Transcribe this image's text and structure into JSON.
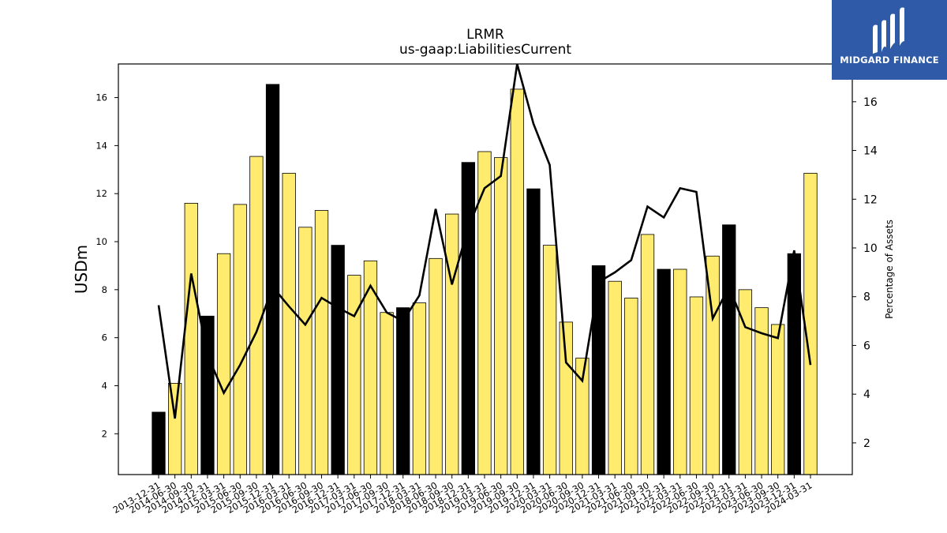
{
  "logo": {
    "text": "MIDGARD FINANCE"
  },
  "chart_data": {
    "type": "bar",
    "title": "LRMR",
    "subtitle": "us-gaap:LiabilitiesCurrent",
    "ylabel": "USDm",
    "ylabel_right": "Percentage of Assets",
    "ylim": [
      0.3,
      17.4
    ],
    "ylim_right": [
      0.7,
      17.55
    ],
    "yticks": [
      2,
      4,
      6,
      8,
      10,
      12,
      14,
      16
    ],
    "yticks_right": [
      2,
      4,
      6,
      8,
      10,
      12,
      14,
      16
    ],
    "grid": false,
    "colors": {
      "annual": "#000000",
      "quarter": "#ffec6e",
      "line": "#000000"
    },
    "categories": [
      "2013-12-31",
      "2014-06-30",
      "2014-09-30",
      "2014-12-31",
      "2015-03-31",
      "2015-06-30",
      "2015-09-30",
      "2015-12-31",
      "2016-03-31",
      "2016-06-30",
      "2016-09-30",
      "2016-12-31",
      "2017-03-31",
      "2017-06-30",
      "2017-09-30",
      "2017-12-31",
      "2018-03-31",
      "2018-06-30",
      "2018-09-30",
      "2018-12-31",
      "2019-03-31",
      "2019-06-30",
      "2019-09-30",
      "2019-12-31",
      "2020-03-31",
      "2020-06-30",
      "2020-09-30",
      "2020-12-31",
      "2021-03-31",
      "2021-06-30",
      "2021-09-30",
      "2021-12-31",
      "2022-03-31",
      "2022-06-30",
      "2022-09-30",
      "2022-12-31",
      "2023-03-31",
      "2023-06-30",
      "2023-09-30",
      "2023-12-31",
      "2024-03-31"
    ],
    "values": [
      2.9,
      4.1,
      11.6,
      6.9,
      9.5,
      11.55,
      13.55,
      16.55,
      12.85,
      10.6,
      11.3,
      9.85,
      8.6,
      9.2,
      7.05,
      7.25,
      7.45,
      9.3,
      11.15,
      13.3,
      13.75,
      13.5,
      16.35,
      12.2,
      9.85,
      6.65,
      5.15,
      9.0,
      8.35,
      7.65,
      10.3,
      8.85,
      8.85,
      7.7,
      9.4,
      10.7,
      8.0,
      7.25,
      6.55,
      9.5,
      12.85
    ],
    "annual_flags": [
      true,
      false,
      false,
      true,
      false,
      false,
      false,
      true,
      false,
      false,
      false,
      true,
      false,
      false,
      false,
      true,
      false,
      false,
      false,
      true,
      false,
      false,
      false,
      true,
      false,
      false,
      false,
      true,
      false,
      false,
      false,
      true,
      false,
      false,
      false,
      true,
      false,
      false,
      false,
      true,
      false
    ],
    "series": [
      {
        "type": "line",
        "axis": "right",
        "values": [
          7.65,
          3.0,
          8.95,
          5.6,
          4.05,
          5.2,
          6.55,
          8.4,
          7.6,
          6.85,
          7.95,
          7.55,
          7.2,
          8.45,
          7.35,
          7.0,
          8.05,
          11.6,
          8.5,
          10.85,
          12.45,
          12.95,
          17.55,
          15.1,
          13.4,
          5.3,
          4.55,
          8.6,
          9.0,
          9.5,
          11.7,
          11.25,
          12.45,
          12.3,
          7.1,
          8.4,
          6.75,
          6.5,
          6.3,
          9.9,
          5.2
        ]
      }
    ]
  }
}
